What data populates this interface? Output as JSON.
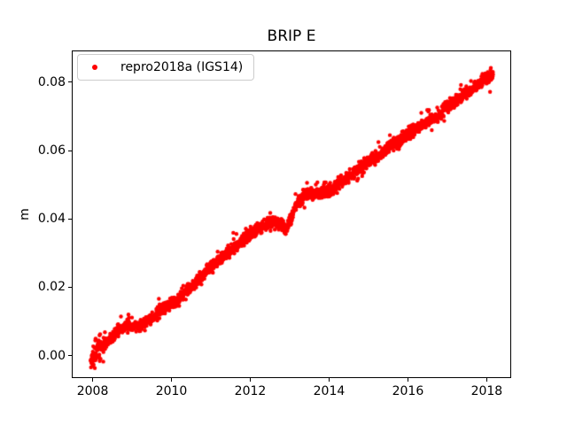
{
  "chart_data": {
    "type": "scatter",
    "title": "BRIP E",
    "xlabel": "",
    "legend": {
      "label": "repro2018a (IGS14)",
      "marker_color": "#ff0000",
      "location": "upper left"
    },
    "x_axis": {
      "lim": [
        2007.47,
        2018.62
      ],
      "ticks": [
        2008,
        2010,
        2012,
        2014,
        2016,
        2018
      ],
      "tick_labels": [
        "2008",
        "2010",
        "2012",
        "2014",
        "2016",
        "2018"
      ]
    },
    "y_axis": {
      "label": "m",
      "lim": [
        -0.0066,
        0.0893
      ],
      "ticks": [
        0.0,
        0.02,
        0.04,
        0.06,
        0.08
      ],
      "tick_labels": [
        "0.00",
        "0.02",
        "0.04",
        "0.06",
        "0.08"
      ]
    },
    "grid": false,
    "series": [
      {
        "name": "repro2018a (IGS14)",
        "color": "#ff0000",
        "marker": "point",
        "x_start": 2007.95,
        "x_end": 2018.16,
        "n_points": 2600,
        "noise_std": 0.00085,
        "early_noise": {
          "until": 2008.2,
          "std": 0.0015
        },
        "outlier_rate": 0.008,
        "outlier_max": 0.0035,
        "trend": [
          [
            2007.95,
            -0.0008
          ],
          [
            2008.05,
            0.0002
          ],
          [
            2008.3,
            0.0035
          ],
          [
            2008.6,
            0.0067
          ],
          [
            2008.85,
            0.009
          ],
          [
            2009.0,
            0.0088
          ],
          [
            2009.2,
            0.0083
          ],
          [
            2009.5,
            0.011
          ],
          [
            2009.8,
            0.014
          ],
          [
            2010.1,
            0.016
          ],
          [
            2010.5,
            0.02
          ],
          [
            2010.9,
            0.025
          ],
          [
            2011.3,
            0.029
          ],
          [
            2011.7,
            0.0325
          ],
          [
            2012.0,
            0.0355
          ],
          [
            2012.4,
            0.0385
          ],
          [
            2012.6,
            0.0392
          ],
          [
            2012.8,
            0.0383
          ],
          [
            2012.92,
            0.0368
          ],
          [
            2013.02,
            0.04
          ],
          [
            2013.15,
            0.0435
          ],
          [
            2013.3,
            0.046
          ],
          [
            2013.5,
            0.0475
          ],
          [
            2013.75,
            0.0475
          ],
          [
            2014.0,
            0.048
          ],
          [
            2014.25,
            0.0505
          ],
          [
            2014.5,
            0.0525
          ],
          [
            2014.75,
            0.0545
          ],
          [
            2015.0,
            0.057
          ],
          [
            2015.25,
            0.0585
          ],
          [
            2015.5,
            0.061
          ],
          [
            2015.75,
            0.0625
          ],
          [
            2016.0,
            0.065
          ],
          [
            2016.25,
            0.0665
          ],
          [
            2016.5,
            0.0685
          ],
          [
            2016.75,
            0.0695
          ],
          [
            2017.0,
            0.073
          ],
          [
            2017.25,
            0.0748
          ],
          [
            2017.5,
            0.077
          ],
          [
            2017.7,
            0.0785
          ],
          [
            2017.85,
            0.08
          ],
          [
            2018.0,
            0.0815
          ],
          [
            2018.16,
            0.082
          ]
        ]
      }
    ]
  }
}
